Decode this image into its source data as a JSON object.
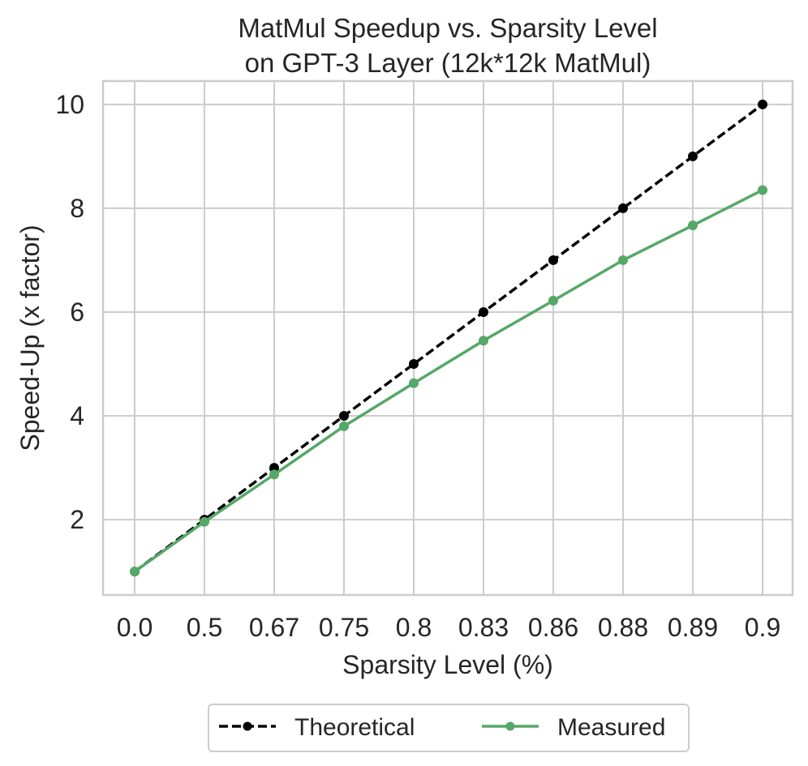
{
  "chart_data": {
    "type": "line",
    "title": "MatMul Speedup vs. Sparsity Level",
    "subtitle": "on GPT-3 Layer (12k*12k MatMul)",
    "xlabel": "Sparsity Level (%)",
    "ylabel": "Speed-Up (x factor)",
    "categories": [
      "0.0",
      "0.5",
      "0.67",
      "0.75",
      "0.8",
      "0.83",
      "0.86",
      "0.88",
      "0.89",
      "0.9"
    ],
    "yticks": [
      "2",
      "4",
      "6",
      "8",
      "10"
    ],
    "ylim": [
      0.55,
      10.45
    ],
    "grid": true,
    "legend_position": "bottom-center",
    "series": [
      {
        "name": "Theoretical",
        "color": "#000000",
        "style": "dashed",
        "values": [
          1,
          2,
          3,
          4,
          5,
          6,
          7,
          8,
          9,
          10
        ]
      },
      {
        "name": "Measured",
        "color": "#55a868",
        "style": "solid",
        "values": [
          1.0,
          1.96,
          2.87,
          3.8,
          4.63,
          5.45,
          6.22,
          7.0,
          7.67,
          8.35
        ]
      }
    ]
  }
}
